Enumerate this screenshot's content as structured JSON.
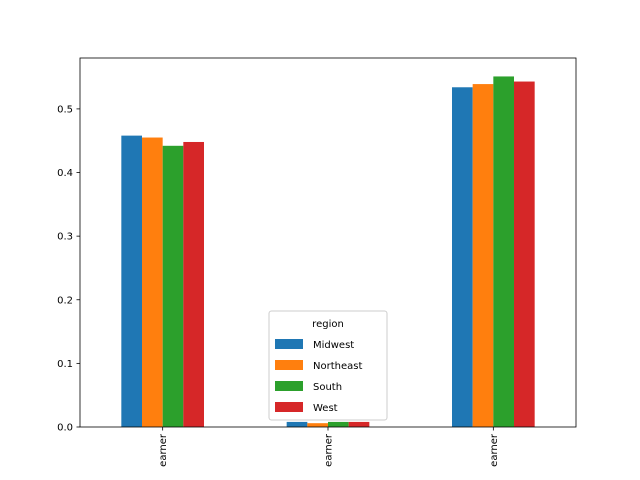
{
  "chart_data": {
    "type": "bar",
    "title": "",
    "xlabel": "",
    "ylabel": "",
    "categories": [
      "earner",
      "earner",
      "earner"
    ],
    "ylim": [
      0,
      0.58
    ],
    "yticks": [
      "0.0",
      "0.1",
      "0.2",
      "0.3",
      "0.4",
      "0.5"
    ],
    "grid": false,
    "legend": {
      "title": "region",
      "placement": "lower-center"
    },
    "series": [
      {
        "name": "Midwest",
        "color": "#1f77b4",
        "values": [
          0.458,
          0.008,
          0.534
        ]
      },
      {
        "name": "Northeast",
        "color": "#ff7f0e",
        "values": [
          0.455,
          0.006,
          0.539
        ]
      },
      {
        "name": "South",
        "color": "#2ca02c",
        "values": [
          0.442,
          0.008,
          0.551
        ]
      },
      {
        "name": "West",
        "color": "#d62728",
        "values": [
          0.448,
          0.008,
          0.543
        ]
      }
    ]
  }
}
